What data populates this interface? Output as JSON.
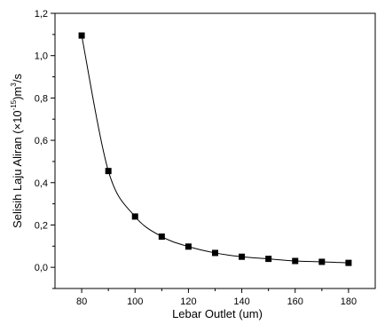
{
  "chart_data": {
    "type": "line",
    "xlabel": "Lebar Outlet (um)",
    "ylabel_parts": [
      "Selisih Laju Aliran (×10",
      "-15",
      ")m",
      "3",
      "/s"
    ],
    "xlim": [
      70,
      190
    ],
    "ylim": [
      -0.1,
      1.2
    ],
    "x_ticks": [
      80,
      100,
      120,
      140,
      160,
      180
    ],
    "x_tick_labels": [
      "80",
      "100",
      "120",
      "140",
      "160",
      "180"
    ],
    "y_ticks": [
      0.0,
      0.2,
      0.4,
      0.6,
      0.8,
      1.0,
      1.2
    ],
    "y_tick_labels": [
      "0,0",
      "0,2",
      "0,4",
      "0,6",
      "0,8",
      "1,0",
      "1,2"
    ],
    "series": [
      {
        "x": [
          80,
          90,
          100,
          110,
          120,
          130,
          140,
          150,
          160,
          170,
          180
        ],
        "y": [
          1.095,
          0.455,
          0.24,
          0.145,
          0.098,
          0.068,
          0.05,
          0.04,
          0.03,
          0.026,
          0.021
        ],
        "marker": "square",
        "color": "#000000"
      }
    ],
    "grid": false,
    "legend": "none"
  }
}
